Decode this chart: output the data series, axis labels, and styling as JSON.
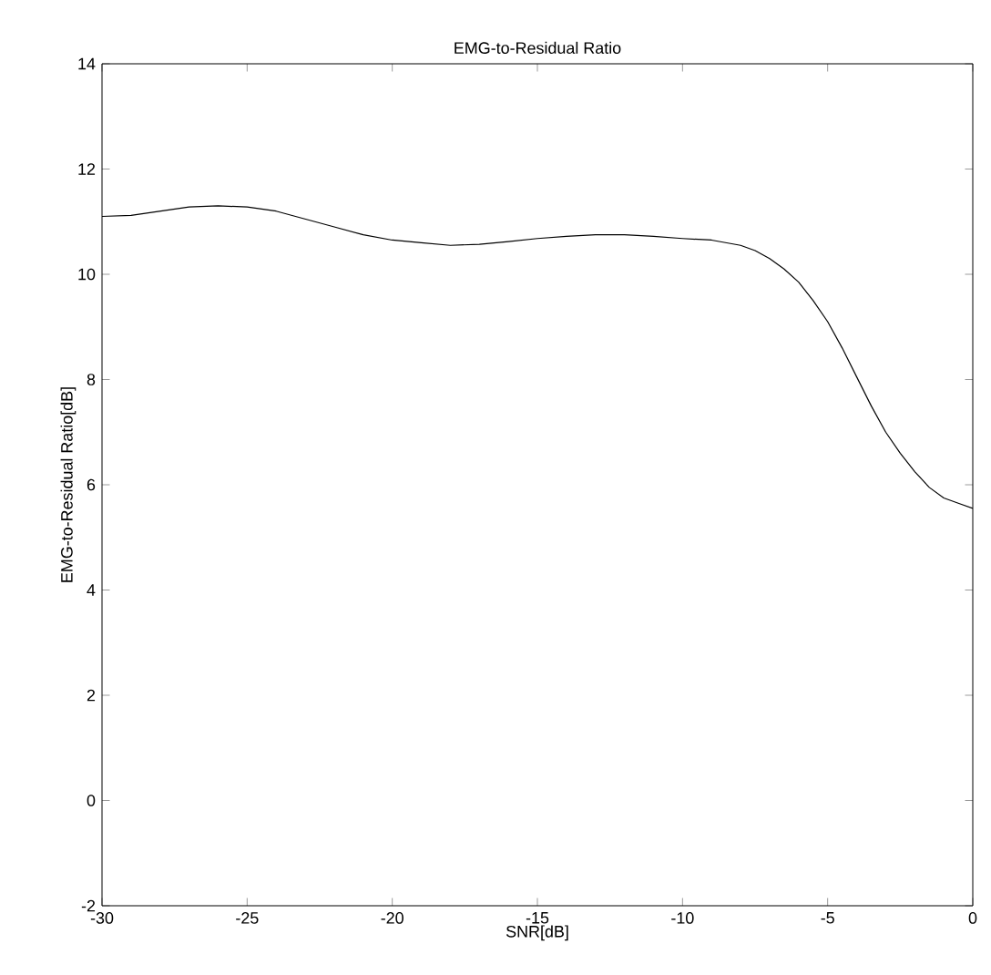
{
  "chart_data": {
    "type": "line",
    "title": "EMG-to-Residual Ratio",
    "xlabel": "SNR[dB]",
    "ylabel": "EMG-to-Residual Ratio[dB]",
    "xlim": [
      -30,
      0
    ],
    "ylim": [
      -2,
      14
    ],
    "xticks": [
      -30,
      -25,
      -20,
      -15,
      -10,
      -5,
      0
    ],
    "yticks": [
      -2,
      0,
      2,
      4,
      6,
      8,
      10,
      12,
      14
    ],
    "grid": false,
    "marker": "none",
    "line_style": "solid",
    "series": [
      {
        "color": "#000000",
        "x": [
          -30,
          -29,
          -28,
          -27,
          -26,
          -25,
          -24,
          -23,
          -22,
          -21,
          -20,
          -19,
          -18,
          -17,
          -16,
          -15,
          -14,
          -13,
          -12,
          -11,
          -10,
          -9,
          -8,
          -7.5,
          -7,
          -6.5,
          -6,
          -5.5,
          -5,
          -4.5,
          -4,
          -3.5,
          -3,
          -2.5,
          -2,
          -1.5,
          -1,
          -0.5,
          0
        ],
        "values": [
          11.1,
          11.12,
          11.2,
          11.28,
          11.3,
          11.28,
          11.2,
          11.05,
          10.9,
          10.75,
          10.65,
          10.6,
          10.55,
          10.57,
          10.62,
          10.68,
          10.72,
          10.75,
          10.75,
          10.72,
          10.68,
          10.65,
          10.55,
          10.45,
          10.3,
          10.1,
          9.85,
          9.5,
          9.1,
          8.6,
          8.05,
          7.5,
          7.0,
          6.6,
          6.25,
          5.95,
          5.75,
          5.65,
          5.55
        ]
      }
    ]
  }
}
